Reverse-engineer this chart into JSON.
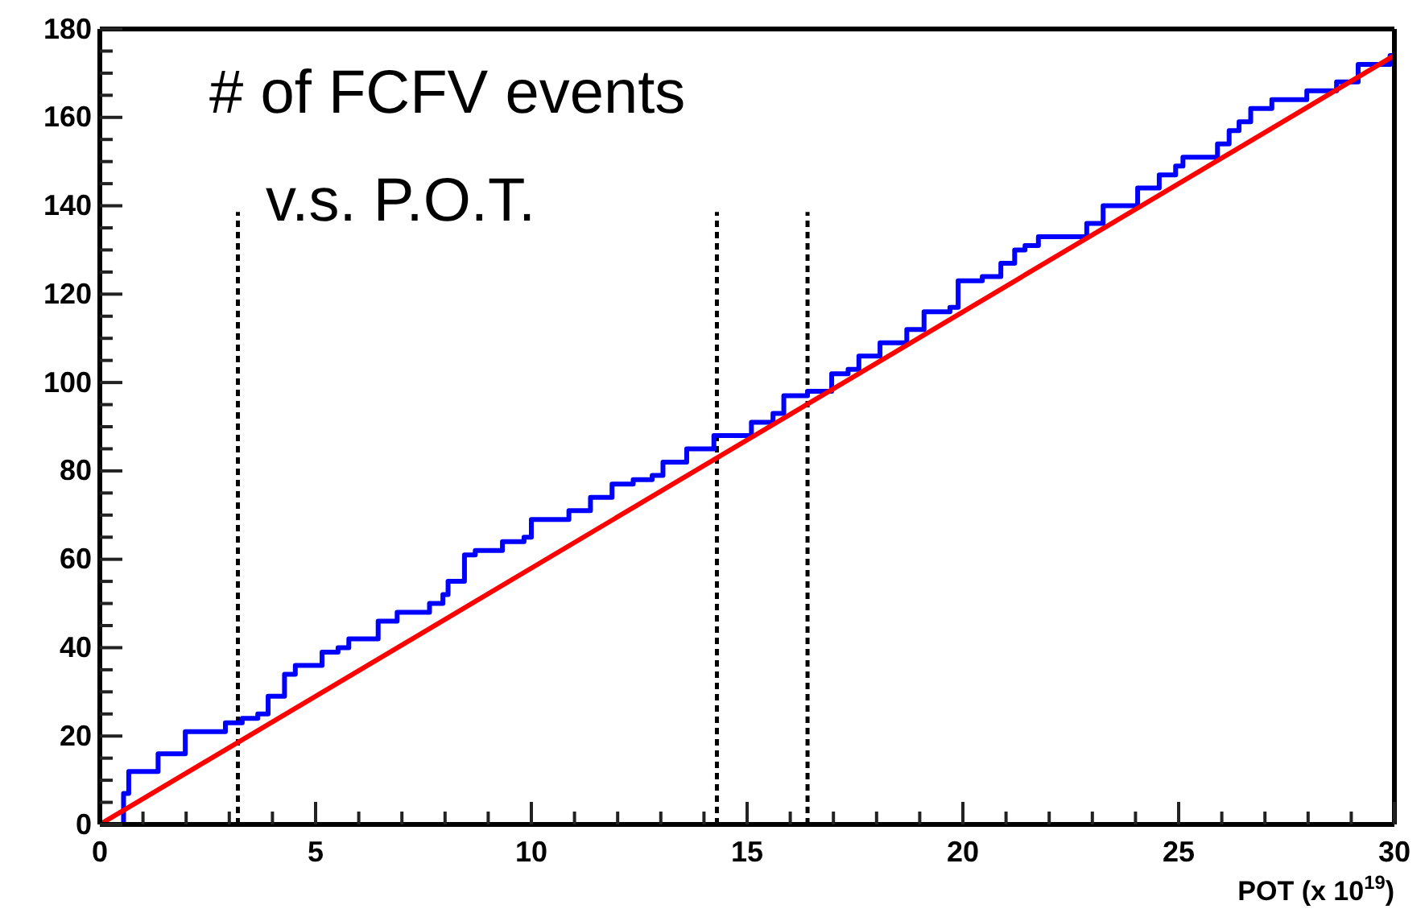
{
  "chart_data": {
    "type": "line",
    "title": "# of FCFV events",
    "subtitle": "v.s. P.O.T.",
    "xlabel": "POT (x 10$^{19}$)",
    "xlim": [
      0,
      30
    ],
    "ylim": [
      0,
      180
    ],
    "xticks": [
      0,
      {
        "value": 1,
        "label": null
      },
      {
        "value": 2,
        "label": null
      },
      {
        "value": 3,
        "label": null
      },
      {
        "value": 4,
        "label": null
      },
      5,
      {
        "value": 6,
        "label": null
      },
      {
        "value": 7,
        "label": null
      },
      {
        "value": 8,
        "label": null
      },
      {
        "value": 9,
        "label": null
      },
      10,
      {
        "value": 11,
        "label": null
      },
      {
        "value": 12,
        "label": null
      },
      {
        "value": 13,
        "label": null
      },
      {
        "value": 14,
        "label": null
      },
      15,
      {
        "value": 16,
        "label": null
      },
      {
        "value": 17,
        "label": null
      },
      {
        "value": 18,
        "label": null
      },
      {
        "value": 19,
        "label": null
      },
      20,
      {
        "value": 21,
        "label": null
      },
      {
        "value": 22,
        "label": null
      },
      {
        "value": 23,
        "label": null
      },
      {
        "value": 24,
        "label": null
      },
      25,
      {
        "value": 26,
        "label": null
      },
      {
        "value": 27,
        "label": null
      },
      {
        "value": 28,
        "label": null
      },
      {
        "value": 29,
        "label": null
      },
      30
    ],
    "yticks": [
      0,
      {
        "value": 5,
        "label": null
      },
      {
        "value": 10,
        "label": null
      },
      {
        "value": 15,
        "label": null
      },
      20,
      {
        "value": 25,
        "label": null
      },
      {
        "value": 30,
        "label": null
      },
      {
        "value": 35,
        "label": null
      },
      40,
      {
        "value": 45,
        "label": null
      },
      {
        "value": 50,
        "label": null
      },
      {
        "value": 55,
        "label": null
      },
      60,
      {
        "value": 65,
        "label": null
      },
      {
        "value": 70,
        "label": null
      },
      {
        "value": 75,
        "label": null
      },
      80,
      {
        "value": 85,
        "label": null
      },
      {
        "value": 90,
        "label": null
      },
      {
        "value": 95,
        "label": null
      },
      100,
      {
        "value": 105,
        "label": null
      },
      {
        "value": 110,
        "label": null
      },
      {
        "value": 115,
        "label": null
      },
      120,
      {
        "value": 125,
        "label": null
      },
      {
        "value": 130,
        "label": null
      },
      {
        "value": 135,
        "label": null
      },
      140,
      {
        "value": 145,
        "label": null
      },
      {
        "value": 150,
        "label": null
      },
      {
        "value": 155,
        "label": null
      },
      160,
      {
        "value": 165,
        "label": null
      },
      {
        "value": 170,
        "label": null
      },
      {
        "value": 175,
        "label": null
      },
      180
    ],
    "grid": false,
    "ref_lines": [
      {
        "axis": "x",
        "value": 3.2,
        "color": "#000000",
        "line_style": "dashed"
      },
      {
        "axis": "x",
        "value": 14.3,
        "color": "#000000",
        "line_style": "dashed"
      },
      {
        "axis": "x",
        "value": 16.4,
        "color": "#000000",
        "line_style": "dashed"
      }
    ],
    "series": [
      {
        "type": "step",
        "color": "#0000ff",
        "x": [
          0,
          0.55,
          0.67,
          1.35,
          1.98,
          2.66,
          2.91,
          3.3,
          3.66,
          3.9,
          4.28,
          4.53,
          4.9,
          5.15,
          5.52,
          5.77,
          6.27,
          6.45,
          6.89,
          7.45,
          7.64,
          7.95,
          8.07,
          8.45,
          8.7,
          9.2,
          9.33,
          9.83,
          10.0,
          10.5,
          10.87,
          11.37,
          11.87,
          12.36,
          12.8,
          13.05,
          13.6,
          14.23,
          14.91,
          15.1,
          15.6,
          15.85,
          16.4,
          16.96,
          17.34,
          17.59,
          18.08,
          18.7,
          19.1,
          19.7,
          19.89,
          20.45,
          20.88,
          21.2,
          21.44,
          21.75,
          22.5,
          22.87,
          23.25,
          23.68,
          24.05,
          24.55,
          24.93,
          25.1,
          25.5,
          25.9,
          26.17,
          26.4,
          26.67,
          27.16,
          27.97,
          28.5,
          28.66,
          29.16,
          29.9,
          30
        ],
        "values": [
          0,
          7,
          12,
          16,
          21,
          21,
          23,
          24,
          25,
          29,
          34,
          36,
          36,
          39,
          40,
          42,
          42,
          46,
          48,
          48,
          50,
          52,
          55,
          61,
          62,
          62,
          64,
          65,
          69,
          69,
          71,
          74,
          77,
          78,
          79,
          82,
          85,
          88,
          88,
          91,
          93,
          97,
          98,
          102,
          103,
          106,
          109,
          112,
          116,
          117,
          123,
          124,
          127,
          130,
          131,
          133,
          133,
          136,
          140,
          140,
          144,
          147,
          149,
          151,
          151,
          154,
          157,
          159,
          162,
          164,
          166,
          166,
          168,
          172,
          174,
          0
        ]
      },
      {
        "color": "#ff0000",
        "x": [
          0,
          30
        ],
        "values": [
          0,
          174
        ]
      }
    ]
  }
}
